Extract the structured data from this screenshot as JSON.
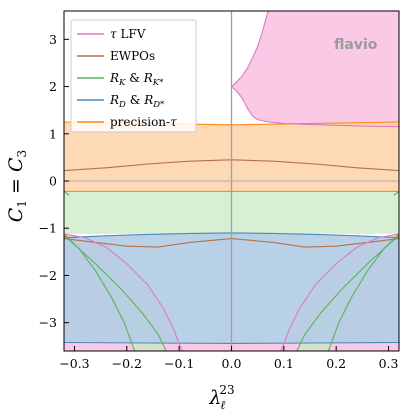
{
  "chart_data": {
    "type": "area",
    "xlabel_base": "λ",
    "xlabel_sub": "ℓ",
    "xlabel_sup": "23",
    "ylabel": "C1 = C3",
    "ylabel_parts": {
      "c1": "C",
      "s1": "1",
      "eq": " = ",
      "c3": "C",
      "s3": "3"
    },
    "watermark": "flavio",
    "xlim": [
      -0.32,
      0.32
    ],
    "ylim": [
      -3.6,
      3.6
    ],
    "xticks": [
      -0.3,
      -0.2,
      -0.1,
      0.0,
      0.1,
      0.2,
      0.3
    ],
    "xtick_labels": [
      "−0.3",
      "−0.2",
      "−0.1",
      "0.0",
      "0.1",
      "0.2",
      "0.3"
    ],
    "yticks": [
      -3,
      -2,
      -1,
      0,
      1,
      2,
      3
    ],
    "ytick_labels": [
      "−3",
      "−2",
      "−1",
      "0",
      "1",
      "2",
      "3"
    ],
    "legend_position": "top-left",
    "reference_lines": {
      "x": 0.0,
      "y": 0.0
    },
    "series": [
      {
        "id": "tau_lfv",
        "name": "τ LFV",
        "name_math": "τ",
        "name_text": " LFV",
        "color": "#e377c2",
        "fill": "#f9c9e6",
        "regions": [
          {
            "kind": "above",
            "points": [
              [
                0.0,
                2.0
              ],
              [
                0.005,
                1.95
              ],
              [
                0.01,
                1.9
              ],
              [
                0.015,
                1.83
              ],
              [
                0.02,
                1.76
              ],
              [
                0.03,
                1.55
              ],
              [
                0.04,
                1.38
              ],
              [
                0.05,
                1.3
              ],
              [
                0.065,
                1.26
              ],
              [
                0.08,
                1.24
              ],
              [
                0.1,
                1.22
              ],
              [
                0.14,
                1.2
              ],
              [
                0.2,
                1.18
              ],
              [
                0.26,
                1.16
              ],
              [
                0.32,
                1.15
              ]
            ]
          },
          {
            "kind": "above_mirror",
            "points": [
              [
                0.0,
                2.0
              ],
              [
                0.005,
                2.05
              ],
              [
                0.01,
                2.1
              ],
              [
                0.015,
                2.16
              ],
              [
                0.02,
                2.22
              ],
              [
                0.03,
                2.38
              ],
              [
                0.04,
                2.6
              ],
              [
                0.05,
                2.85
              ],
              [
                0.06,
                3.2
              ],
              [
                0.07,
                3.6
              ]
            ]
          },
          {
            "kind": "below",
            "points": [
              [
                -0.32,
                -1.12
              ],
              [
                -0.28,
                -1.2
              ],
              [
                -0.24,
                -1.4
              ],
              [
                -0.2,
                -1.75
              ],
              [
                -0.16,
                -2.2
              ],
              [
                -0.13,
                -2.7
              ],
              [
                -0.11,
                -3.15
              ],
              [
                -0.1,
                -3.45
              ],
              [
                -0.094,
                -3.6
              ]
            ]
          },
          {
            "kind": "below",
            "points": [
              [
                0.094,
                -3.6
              ],
              [
                0.1,
                -3.45
              ],
              [
                0.11,
                -3.15
              ],
              [
                0.13,
                -2.7
              ],
              [
                0.16,
                -2.2
              ],
              [
                0.2,
                -1.75
              ],
              [
                0.24,
                -1.4
              ],
              [
                0.28,
                -1.2
              ],
              [
                0.32,
                -1.12
              ]
            ]
          }
        ]
      },
      {
        "id": "ewpo",
        "name": "EWPOs",
        "color": "#b2724c",
        "upper": [
          [
            -0.32,
            0.22
          ],
          [
            -0.24,
            0.28
          ],
          [
            -0.16,
            0.36
          ],
          [
            -0.08,
            0.42
          ],
          [
            0.0,
            0.45
          ],
          [
            0.08,
            0.42
          ],
          [
            0.16,
            0.36
          ],
          [
            0.24,
            0.28
          ],
          [
            0.32,
            0.22
          ]
        ],
        "lower": [
          [
            -0.32,
            -1.22
          ],
          [
            -0.26,
            -1.3
          ],
          [
            -0.2,
            -1.38
          ],
          [
            -0.14,
            -1.4
          ],
          [
            -0.08,
            -1.3
          ],
          [
            0.0,
            -1.22
          ],
          [
            0.08,
            -1.3
          ],
          [
            0.14,
            -1.4
          ],
          [
            0.2,
            -1.38
          ],
          [
            0.26,
            -1.3
          ],
          [
            0.32,
            -1.22
          ]
        ]
      },
      {
        "id": "rk",
        "name": "R_K & R_K*",
        "name_parts": {
          "a": "R",
          "as": "K",
          "amp": " & ",
          "b": "R",
          "bs": "K*"
        },
        "color": "#5cb35c",
        "fill": "#c9e9c4",
        "band": {
          "upper": -0.22,
          "lower": -1.12
        },
        "left_edge": [
          [
            -0.32,
            -1.12
          ],
          [
            -0.29,
            -1.45
          ],
          [
            -0.26,
            -1.9
          ],
          [
            -0.23,
            -2.45
          ],
          [
            -0.205,
            -3.0
          ],
          [
            -0.19,
            -3.45
          ],
          [
            -0.185,
            -3.6
          ]
        ],
        "right_edge": [
          [
            0.185,
            -3.6
          ],
          [
            0.19,
            -3.45
          ],
          [
            0.205,
            -3.0
          ],
          [
            0.23,
            -2.45
          ],
          [
            0.26,
            -1.9
          ],
          [
            0.29,
            -1.45
          ],
          [
            0.32,
            -1.12
          ]
        ],
        "inner_left": [
          [
            -0.32,
            -1.15
          ],
          [
            -0.26,
            -1.75
          ],
          [
            -0.21,
            -2.3
          ],
          [
            -0.17,
            -2.8
          ],
          [
            -0.14,
            -3.25
          ],
          [
            -0.125,
            -3.6
          ]
        ],
        "inner_right": [
          [
            0.125,
            -3.6
          ],
          [
            0.14,
            -3.25
          ],
          [
            0.17,
            -2.8
          ],
          [
            0.21,
            -2.3
          ],
          [
            0.26,
            -1.75
          ],
          [
            0.32,
            -1.15
          ]
        ],
        "upper_wing_left": [
          [
            -0.32,
            -0.24
          ],
          [
            -0.3,
            -0.35
          ],
          [
            -0.28,
            -0.7
          ],
          [
            -0.275,
            -1.12
          ]
        ],
        "upper_wing_right": [
          [
            0.275,
            -1.12
          ],
          [
            0.28,
            -0.7
          ],
          [
            0.3,
            -0.35
          ],
          [
            0.32,
            -0.24
          ]
        ]
      },
      {
        "id": "rd",
        "name": "R_D & R_D*",
        "name_parts": {
          "a": "R",
          "as": "D",
          "amp": " & ",
          "b": "R",
          "bs": "D*"
        },
        "color": "#4a89c2",
        "fill": "#b3cde4",
        "upper": [
          [
            -0.32,
            -1.2
          ],
          [
            -0.24,
            -1.16
          ],
          [
            -0.16,
            -1.13
          ],
          [
            -0.08,
            -1.11
          ],
          [
            0.0,
            -1.1
          ],
          [
            0.08,
            -1.11
          ],
          [
            0.16,
            -1.13
          ],
          [
            0.24,
            -1.16
          ],
          [
            0.32,
            -1.2
          ]
        ],
        "lower": [
          [
            -0.32,
            -3.42
          ],
          [
            -0.16,
            -3.43
          ],
          [
            0.0,
            -3.44
          ],
          [
            0.16,
            -3.43
          ],
          [
            0.32,
            -3.42
          ]
        ]
      },
      {
        "id": "precision_tau",
        "name": "precision-τ",
        "name_text": "precision-",
        "name_math": "τ",
        "color": "#ff8c1a",
        "fill": "#fdd2a8",
        "upper": [
          [
            -0.32,
            1.25
          ],
          [
            -0.16,
            1.22
          ],
          [
            0.0,
            1.19
          ],
          [
            0.16,
            1.22
          ],
          [
            0.32,
            1.25
          ]
        ],
        "lower": [
          [
            -0.32,
            -0.22
          ],
          [
            0.32,
            -0.22
          ]
        ]
      }
    ]
  }
}
